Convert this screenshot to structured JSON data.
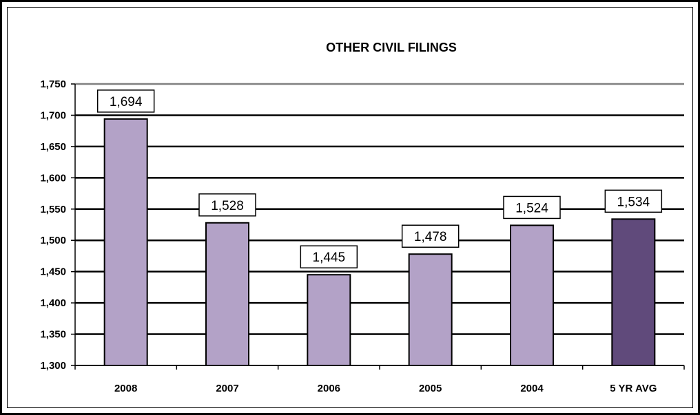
{
  "chart_data": {
    "type": "bar",
    "title": "OTHER CIVIL FILINGS",
    "xlabel": "",
    "ylabel": "",
    "categories": [
      "2008",
      "2007",
      "2006",
      "2005",
      "2004",
      "5 YR AVG"
    ],
    "values": [
      1694,
      1528,
      1445,
      1478,
      1524,
      1534
    ],
    "data_labels": [
      "1,694",
      "1,528",
      "1,445",
      "1,478",
      "1,524",
      "1,534"
    ],
    "ylim": [
      1300,
      1750
    ],
    "yticks": [
      1300,
      1350,
      1400,
      1450,
      1500,
      1550,
      1600,
      1650,
      1700,
      1750
    ],
    "ytick_labels": [
      "1,300",
      "1,350",
      "1,400",
      "1,450",
      "1,500",
      "1,550",
      "1,600",
      "1,650",
      "1,700",
      "1,750"
    ],
    "grid": true,
    "legend": "none",
    "colors": {
      "bar": "#b3a2c7",
      "bar_highlight": "#604a7b",
      "grid": "#000000",
      "top_grid": "#808080"
    }
  }
}
